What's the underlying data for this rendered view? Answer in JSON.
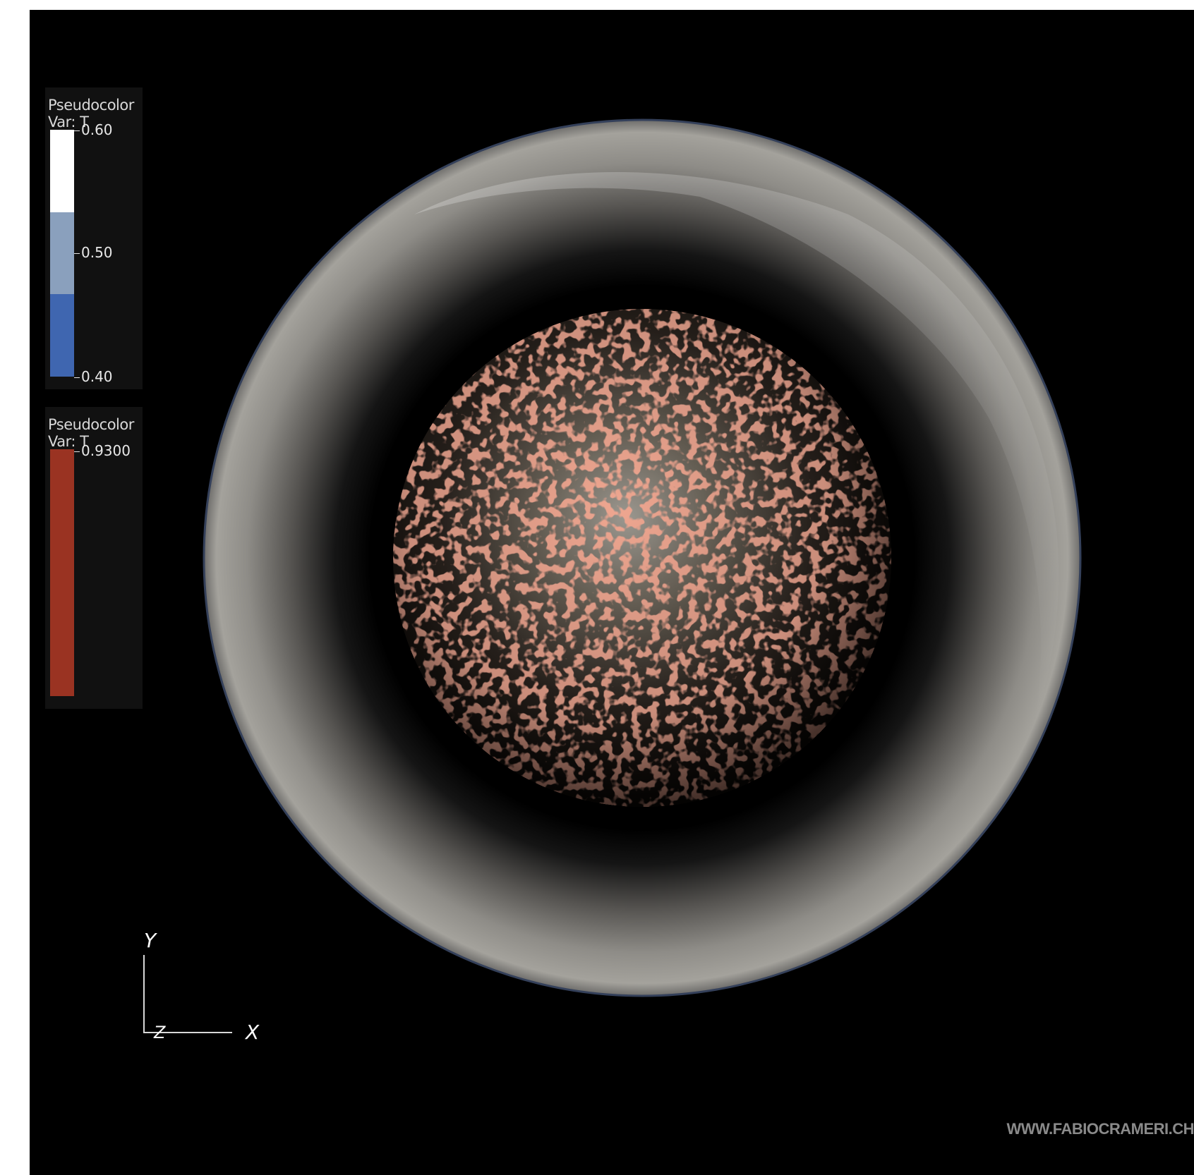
{
  "legends": [
    {
      "title": "Pseudocolor",
      "var": "Var: T",
      "ticks": [
        "0.60",
        "0.50",
        "0.40"
      ],
      "colors": [
        "#ffffff",
        "#8aa0bd",
        "#3f66b0"
      ]
    },
    {
      "title": "Pseudocolor",
      "var": "Var: T",
      "ticks": [
        "0.9300"
      ],
      "colors": [
        "#9a3322"
      ]
    }
  ],
  "axes": {
    "y": "Y",
    "z": "Z",
    "x": "X"
  },
  "watermark": "WWW.FABIOCRAMERI.CH"
}
